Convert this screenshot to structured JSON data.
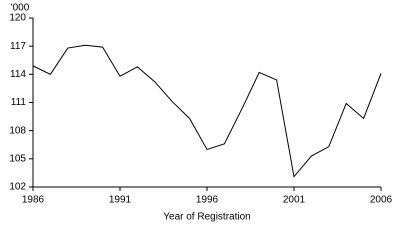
{
  "chart_data": {
    "type": "line",
    "y_unit_label": "'000",
    "x_label": "Year of Registration",
    "x": [
      1986,
      1987,
      1988,
      1989,
      1990,
      1991,
      1992,
      1993,
      1994,
      1995,
      1996,
      1997,
      1998,
      1999,
      2000,
      2001,
      2002,
      2003,
      2004,
      2005,
      2006
    ],
    "series": [
      {
        "color": "#000000",
        "values": [
          114.9,
          114.0,
          116.8,
          117.1,
          116.9,
          113.8,
          114.8,
          113.2,
          111.1,
          109.3,
          106.0,
          106.6,
          110.3,
          114.2,
          113.4,
          103.1,
          105.3,
          106.3,
          110.9,
          109.3,
          114.1
        ]
      }
    ],
    "xlim": [
      1986,
      2006
    ],
    "xticks": [
      1986,
      1991,
      1996,
      2001,
      2006
    ],
    "ylim": [
      102,
      120
    ],
    "yticks": [
      102,
      105,
      108,
      111,
      114,
      117,
      120
    ],
    "grid": false
  }
}
